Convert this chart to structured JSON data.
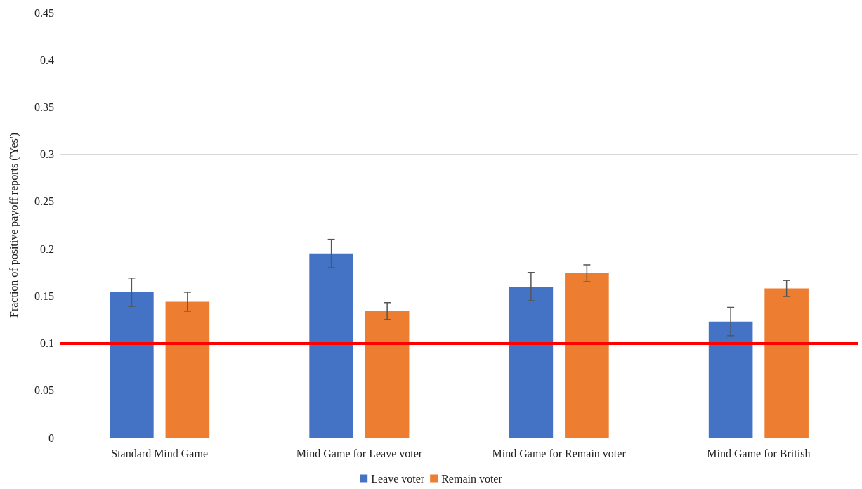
{
  "chart_data": {
    "type": "bar",
    "ylabel": "Fraction of positive payoff reports ('Yes')",
    "categories": [
      "Standard Mind Game",
      "Mind Game for Leave voter",
      "Mind Game for Remain voter",
      "Mind Game for British"
    ],
    "series": [
      {
        "name": "Leave voter",
        "color": "#4472c4",
        "values": [
          0.154,
          0.195,
          0.16,
          0.123
        ],
        "errors": [
          0.015,
          0.015,
          0.015,
          0.015
        ]
      },
      {
        "name": "Remain voter",
        "color": "#ed7d31",
        "values": [
          0.144,
          0.134,
          0.174,
          0.158
        ],
        "errors": [
          0.01,
          0.009,
          0.009,
          0.0085
        ]
      }
    ],
    "ylim": [
      0,
      0.45
    ],
    "yticks": [
      0,
      0.05,
      0.1,
      0.15,
      0.2,
      0.25,
      0.3,
      0.35,
      0.4,
      0.45
    ],
    "grid": "y",
    "legend": "bottom",
    "ref_lines": [
      {
        "axis": "y",
        "value": 0.1,
        "color": "#ff0000",
        "line_style": "solid"
      }
    ]
  }
}
